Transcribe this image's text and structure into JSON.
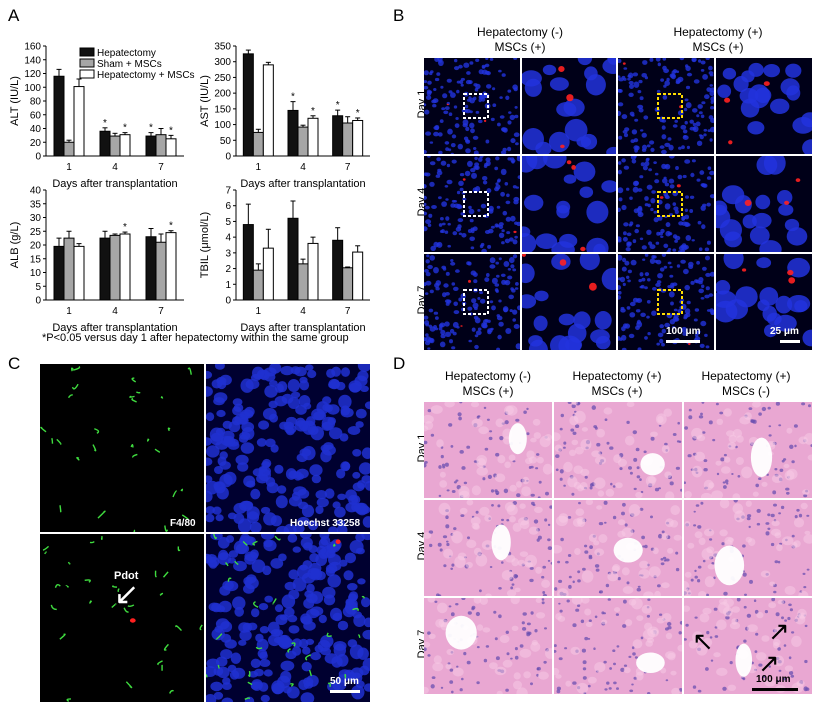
{
  "panels": {
    "a": "A",
    "b": "B",
    "c": "C",
    "d": "D"
  },
  "legend": [
    "Hepatectomy",
    "Sham + MSCs",
    "Hepatectomy + MSCs"
  ],
  "legend_colors": [
    "#111111",
    "#a6a6a6",
    "#ffffff"
  ],
  "footnote": "*P<0.05 versus  day 1 after hepatectomy within the same group",
  "chart_data": [
    {
      "type": "bar",
      "id": "alt",
      "ylabel": "ALT (IU/L)",
      "xlabel": "Days after transplantation",
      "categories": [
        "1",
        "4",
        "7"
      ],
      "ylim": [
        0,
        160
      ],
      "yticks": [
        0,
        20,
        40,
        60,
        80,
        100,
        120,
        140,
        160
      ],
      "series": [
        {
          "name": "Hepatectomy",
          "values": [
            116,
            36,
            29
          ],
          "errors": [
            10,
            5,
            5
          ]
        },
        {
          "name": "Sham + MSCs",
          "values": [
            20,
            29,
            31
          ],
          "errors": [
            3,
            4,
            9
          ]
        },
        {
          "name": "Hepatectomy + MSCs",
          "values": [
            101,
            31,
            25
          ],
          "errors": [
            11,
            3,
            5
          ]
        }
      ],
      "significant": [
        [
          false,
          true,
          true
        ],
        [
          false,
          false,
          false
        ],
        [
          false,
          true,
          true
        ]
      ]
    },
    {
      "type": "bar",
      "id": "ast",
      "ylabel": "AST (IU/L)",
      "xlabel": "Days after transplantation",
      "categories": [
        "1",
        "4",
        "7"
      ],
      "ylim": [
        0,
        350
      ],
      "yticks": [
        0,
        50,
        100,
        150,
        200,
        250,
        300,
        350
      ],
      "series": [
        {
          "name": "Hepatectomy",
          "values": [
            325,
            145,
            128
          ],
          "errors": [
            12,
            28,
            18
          ]
        },
        {
          "name": "Sham + MSCs",
          "values": [
            75,
            92,
            105
          ],
          "errors": [
            10,
            6,
            20
          ]
        },
        {
          "name": "Hepatectomy + MSCs",
          "values": [
            290,
            120,
            113
          ],
          "errors": [
            8,
            8,
            8
          ]
        }
      ],
      "significant": [
        [
          false,
          true,
          true
        ],
        [
          false,
          false,
          false
        ],
        [
          false,
          true,
          true
        ]
      ]
    },
    {
      "type": "bar",
      "id": "alb",
      "ylabel": "ALB (g/L)",
      "xlabel": "Days after transplantation",
      "categories": [
        "1",
        "4",
        "7"
      ],
      "ylim": [
        0,
        40
      ],
      "yticks": [
        0,
        5,
        10,
        15,
        20,
        25,
        30,
        35,
        40
      ],
      "series": [
        {
          "name": "Hepatectomy",
          "values": [
            19.5,
            22.5,
            23
          ],
          "errors": [
            3,
            2.5,
            3
          ]
        },
        {
          "name": "Sham + MSCs",
          "values": [
            22.5,
            23.5,
            21
          ],
          "errors": [
            2.5,
            0.5,
            3
          ]
        },
        {
          "name": "Hepatectomy + MSCs",
          "values": [
            19.5,
            24,
            24.5
          ],
          "errors": [
            1,
            0.7,
            0.7
          ]
        }
      ],
      "significant": [
        [
          false,
          false,
          false
        ],
        [
          false,
          false,
          false
        ],
        [
          false,
          true,
          true
        ]
      ]
    },
    {
      "type": "bar",
      "id": "tbil",
      "ylabel": "TBIL (μmol/L)",
      "xlabel": "Days after transplantation",
      "categories": [
        "1",
        "4",
        "7"
      ],
      "ylim": [
        0,
        7
      ],
      "yticks": [
        0,
        1,
        2,
        3,
        4,
        5,
        6,
        7
      ],
      "series": [
        {
          "name": "Hepatectomy",
          "values": [
            4.8,
            5.2,
            3.8
          ],
          "errors": [
            1.3,
            1.1,
            0.8
          ]
        },
        {
          "name": "Sham + MSCs",
          "values": [
            1.9,
            2.3,
            2.05
          ],
          "errors": [
            0.4,
            0.3,
            0.05
          ]
        },
        {
          "name": "Hepatectomy + MSCs",
          "values": [
            3.3,
            3.6,
            3.05
          ],
          "errors": [
            1.2,
            0.4,
            0.4
          ]
        }
      ],
      "significant": [
        [
          false,
          false,
          false
        ],
        [
          false,
          false,
          false
        ],
        [
          false,
          false,
          false
        ]
      ]
    }
  ],
  "b": {
    "col_titles": [
      [
        "Hepatectomy (-)",
        "MSCs (+)"
      ],
      [
        "Hepatectomy (+)",
        "MSCs (+)"
      ]
    ],
    "rows": [
      "Day 1",
      "Day 4",
      "Day 7"
    ],
    "scale_low": "100 μm",
    "scale_zoom": "25 μm"
  },
  "c": {
    "f480": "F4/80",
    "hoechst": "Hoechst 33258",
    "pdot": "Pdot",
    "scale": "50 μm"
  },
  "d": {
    "col_titles": [
      [
        "Hepatectomy (-)",
        "MSCs (+)"
      ],
      [
        "Hepatectomy (+)",
        "MSCs (+)"
      ],
      [
        "Hepatectomy (+)",
        "MSCs (-)"
      ]
    ],
    "rows": [
      "Day 1",
      "Day 4",
      "Day 7"
    ],
    "scale": "100 μm"
  }
}
